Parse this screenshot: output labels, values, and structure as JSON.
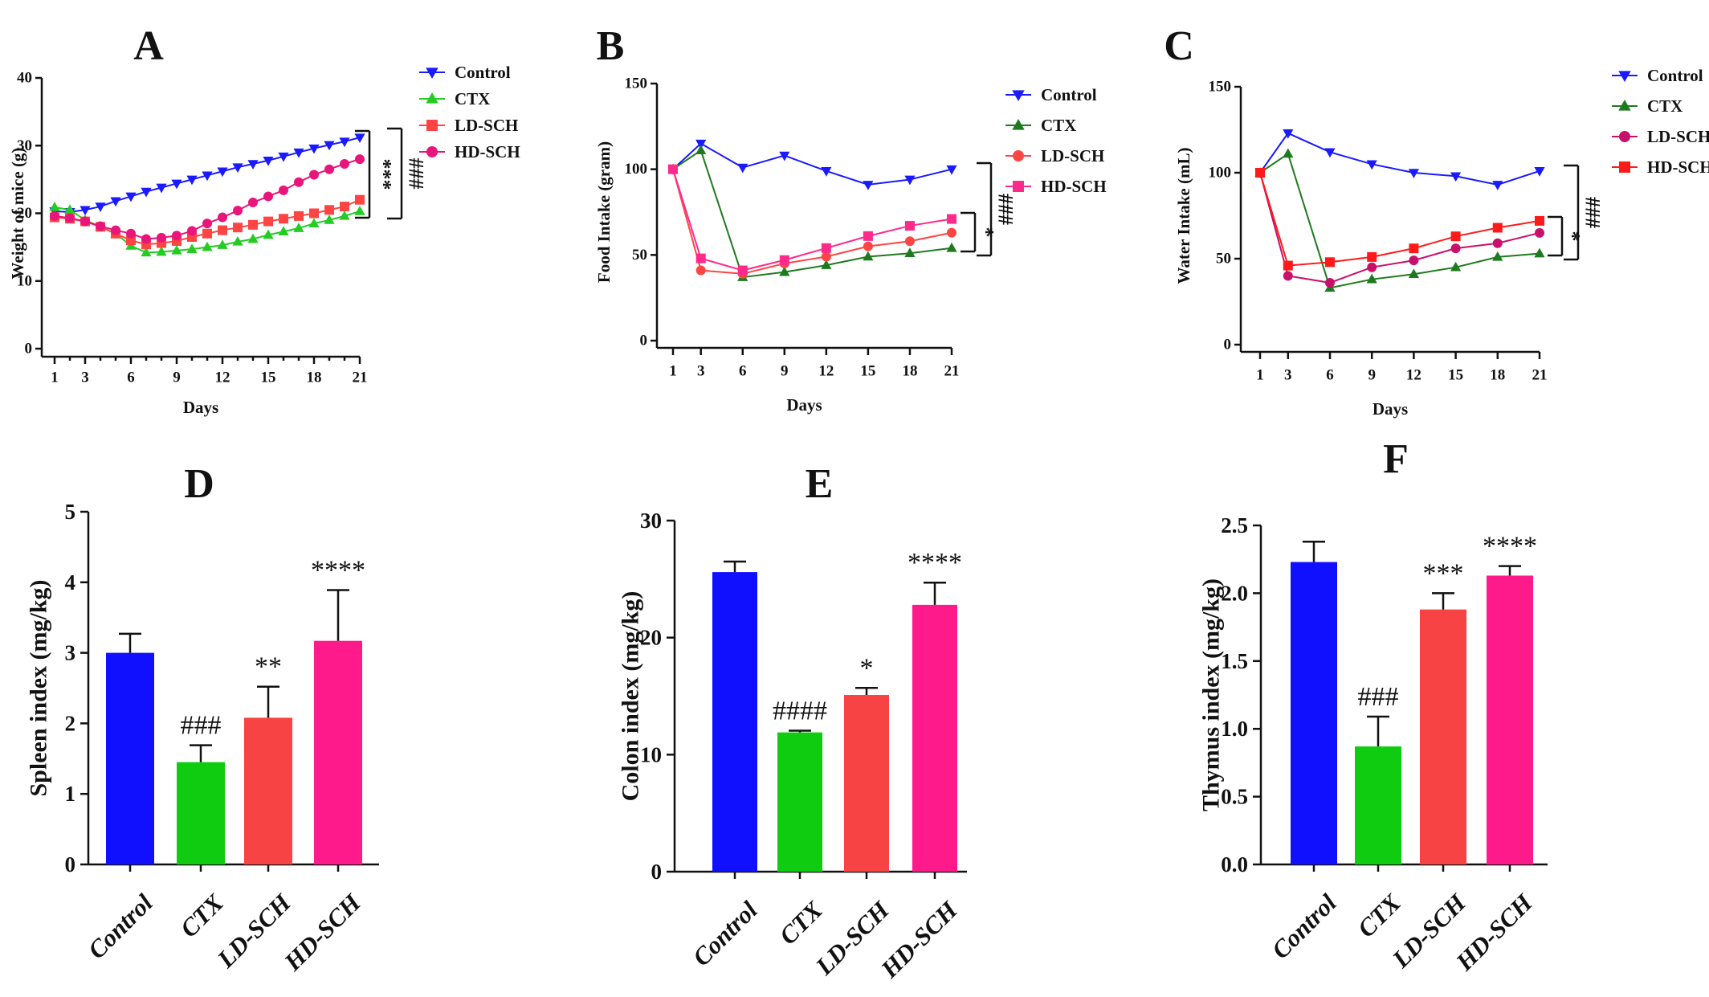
{
  "chart_data": [
    {
      "panel": "A",
      "type": "line",
      "xlabel": "Days",
      "ylabel": "Weight of mice (g)",
      "xlim": [
        1,
        21
      ],
      "xticks": [
        1,
        3,
        6,
        9,
        12,
        15,
        18,
        21
      ],
      "ylim": [
        0,
        40
      ],
      "yticks": [
        0,
        10,
        20,
        30,
        40
      ],
      "legend": "right",
      "x": [
        1,
        2,
        3,
        4,
        5,
        6,
        7,
        8,
        9,
        10,
        11,
        12,
        13,
        14,
        15,
        16,
        17,
        18,
        19,
        20,
        21
      ],
      "series": [
        {
          "name": "Control",
          "color": "#1a1aff",
          "marker": "triangle-down",
          "values": [
            20.3,
            20.2,
            20.5,
            21.0,
            21.8,
            22.5,
            23.2,
            23.8,
            24.4,
            25.0,
            25.6,
            26.2,
            26.8,
            27.3,
            27.8,
            28.4,
            29.0,
            29.6,
            30.1,
            30.6,
            31.2
          ]
        },
        {
          "name": "CTX",
          "color": "#22cc22",
          "marker": "triangle-up",
          "values": [
            20.9,
            20.5,
            19.0,
            18.0,
            17.0,
            15.2,
            14.2,
            14.3,
            14.5,
            14.7,
            15.0,
            15.3,
            15.8,
            16.2,
            16.8,
            17.3,
            17.8,
            18.5,
            19.0,
            19.6,
            20.3
          ]
        },
        {
          "name": "LD-SCH",
          "color": "#ff4444",
          "marker": "square",
          "values": [
            19.4,
            19.2,
            18.8,
            18.0,
            17.0,
            16.0,
            15.4,
            15.6,
            15.9,
            16.5,
            17.0,
            17.5,
            17.9,
            18.3,
            18.8,
            19.2,
            19.6,
            20.0,
            20.5,
            21.0,
            22.0
          ]
        },
        {
          "name": "HD-SCH",
          "color": "#e8157a",
          "marker": "circle",
          "values": [
            19.6,
            19.3,
            18.8,
            18.1,
            17.5,
            17.0,
            16.2,
            16.4,
            16.7,
            17.4,
            18.5,
            19.4,
            20.4,
            21.6,
            22.5,
            23.4,
            24.6,
            25.7,
            26.5,
            27.3,
            28.0
          ]
        }
      ],
      "annotations": [
        "***",
        "###"
      ]
    },
    {
      "panel": "B",
      "type": "line",
      "xlabel": "Days",
      "ylabel": "Food Intake (gram)",
      "xticks": [
        1,
        3,
        6,
        9,
        12,
        15,
        18,
        21
      ],
      "ylim": [
        0,
        150
      ],
      "yticks": [
        0,
        50,
        100,
        150
      ],
      "legend": "right",
      "x": [
        1,
        3,
        6,
        9,
        12,
        15,
        18,
        21
      ],
      "series": [
        {
          "name": "Control",
          "color": "#1a1aff",
          "marker": "triangle-down",
          "values": [
            100,
            115,
            101,
            108,
            99,
            91,
            94,
            100
          ]
        },
        {
          "name": "CTX",
          "color": "#1e7a1e",
          "marker": "triangle-up",
          "values": [
            100,
            111,
            37,
            40,
            44,
            49,
            51,
            54
          ]
        },
        {
          "name": "LD-SCH",
          "color": "#ff4444",
          "marker": "circle",
          "values": [
            100,
            41,
            39,
            45,
            49,
            55,
            58,
            63
          ]
        },
        {
          "name": "HD-SCH",
          "color": "#ff2a8a",
          "marker": "square",
          "values": [
            100,
            48,
            41,
            47,
            54,
            61,
            67,
            71
          ]
        }
      ],
      "annotations": [
        "*",
        "###"
      ]
    },
    {
      "panel": "C",
      "type": "line",
      "xlabel": "Days",
      "ylabel": "Water Intake (mL)",
      "xticks": [
        1,
        3,
        6,
        9,
        12,
        15,
        18,
        21
      ],
      "ylim": [
        0,
        150
      ],
      "yticks": [
        0,
        50,
        100,
        150
      ],
      "legend": "right",
      "x": [
        1,
        3,
        6,
        9,
        12,
        15,
        18,
        21
      ],
      "series": [
        {
          "name": "Control",
          "color": "#1a1aff",
          "marker": "triangle-down",
          "values": [
            100,
            123,
            112,
            105,
            100,
            98,
            93,
            101
          ]
        },
        {
          "name": "CTX",
          "color": "#1e7a1e",
          "marker": "triangle-up",
          "values": [
            100,
            111,
            33,
            38,
            41,
            45,
            51,
            53
          ]
        },
        {
          "name": "LD-SCH",
          "color": "#c8106a",
          "marker": "circle",
          "values": [
            100,
            40,
            36,
            45,
            49,
            56,
            59,
            65
          ]
        },
        {
          "name": "HD-SCH",
          "color": "#ff1a1a",
          "marker": "square",
          "values": [
            100,
            46,
            48,
            51,
            56,
            63,
            68,
            72
          ]
        }
      ],
      "annotations": [
        "*",
        "###"
      ]
    },
    {
      "panel": "D",
      "type": "bar",
      "ylabel": "Spleen index (mg/kg)",
      "categories": [
        "Control",
        "CTX",
        "LD-SCH",
        "HD-SCH"
      ],
      "values": [
        3.0,
        1.45,
        2.08,
        3.17
      ],
      "errors": [
        0.27,
        0.24,
        0.44,
        0.72
      ],
      "colors": [
        "#1010ff",
        "#10cc10",
        "#f74343",
        "#ff1a8c"
      ],
      "significance": [
        "",
        "###",
        "**",
        "****"
      ],
      "ylim": [
        0,
        5
      ],
      "yticks": [
        0,
        1,
        2,
        3,
        4,
        5
      ],
      "yticklabels": [
        "0",
        "1",
        "2",
        "3",
        "4",
        "5"
      ]
    },
    {
      "panel": "E",
      "type": "bar",
      "ylabel": "Colon index (mg/kg)",
      "categories": [
        "Control",
        "CTX",
        "LD-SCH",
        "HD-SCH"
      ],
      "values": [
        25.6,
        11.9,
        15.1,
        22.8
      ],
      "errors": [
        0.9,
        0.15,
        0.6,
        1.9
      ],
      "colors": [
        "#1010ff",
        "#10cc10",
        "#f74343",
        "#ff1a8c"
      ],
      "significance": [
        "",
        "####",
        "*",
        "****"
      ],
      "ylim": [
        0,
        30
      ],
      "yticks": [
        0,
        10,
        20,
        30
      ],
      "yticklabels": [
        "0",
        "10",
        "20",
        "30"
      ]
    },
    {
      "panel": "F",
      "type": "bar",
      "ylabel": "Thymus index (mg/kg)",
      "categories": [
        "Control",
        "CTX",
        "LD-SCH",
        "HD-SCH"
      ],
      "values": [
        2.23,
        0.87,
        1.88,
        2.13
      ],
      "errors": [
        0.15,
        0.22,
        0.12,
        0.07
      ],
      "colors": [
        "#1010ff",
        "#10cc10",
        "#f74343",
        "#ff1a8c"
      ],
      "significance": [
        "",
        "###",
        "***",
        "****"
      ],
      "ylim": [
        0,
        2.5
      ],
      "yticks": [
        0,
        0.5,
        1,
        1.5,
        2,
        2.5
      ],
      "yticklabels": [
        "0.0",
        "0.5",
        "1.0",
        "1.5",
        "2.0",
        "2.5"
      ]
    }
  ]
}
